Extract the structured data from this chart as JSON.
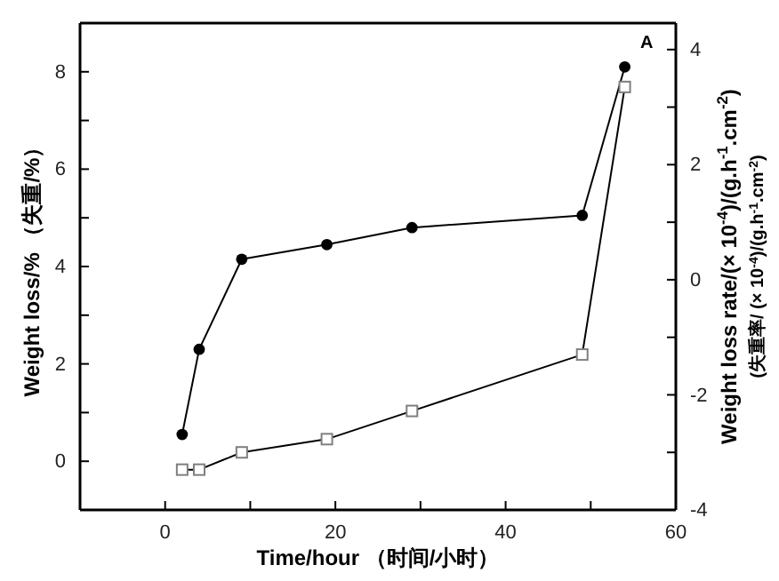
{
  "chart_data": {
    "type": "line",
    "xlabel": "Time/hour （时间/小时）",
    "ylabel": "Weight loss/% （失重/%）",
    "y2label": "Weight loss rate/(× 10$^{-4}$)/(g.h$^{-1}$.cm$^{-2}$)\n(失重率/ (× 10$^{-4}$)/(g.h$^{-1}$.cm$^{-2}$)",
    "x": [
      2,
      4,
      9,
      19,
      29,
      49,
      54
    ],
    "series": [
      {
        "color": "#000000",
        "marker": "circle",
        "values": [
          0.55,
          2.3,
          4.15,
          4.45,
          4.8,
          5.05,
          8.1
        ]
      },
      {
        "color": "#7f7f7f",
        "marker": "square",
        "axis": "y2",
        "values": [
          -3.3,
          -3.3,
          -3.0,
          -2.77,
          -2.28,
          -1.3,
          3.35
        ]
      }
    ],
    "xlim": [
      -10,
      60
    ],
    "xticks": [
      0,
      {
        "value": 10,
        "label": null
      },
      20,
      {
        "value": 30,
        "label": null
      },
      40,
      {
        "value": 50,
        "label": null
      },
      60
    ],
    "ylim": [
      -1,
      9
    ],
    "yticks": [
      0,
      {
        "value": 1,
        "label": null
      },
      2,
      {
        "value": 3,
        "label": null
      },
      4,
      {
        "value": 5,
        "label": null
      },
      6,
      {
        "value": 7,
        "label": null
      },
      8
    ],
    "y2lim": [
      -4,
      4.46
    ],
    "y2ticks": [
      -4,
      {
        "value": -3,
        "label": null
      },
      -2,
      {
        "value": -1,
        "label": null
      },
      0,
      {
        "value": 1,
        "label": null
      },
      2,
      {
        "value": 3,
        "label": null
      },
      4
    ],
    "annotations": [
      "A"
    ],
    "grid": false,
    "line_style": "solid"
  }
}
